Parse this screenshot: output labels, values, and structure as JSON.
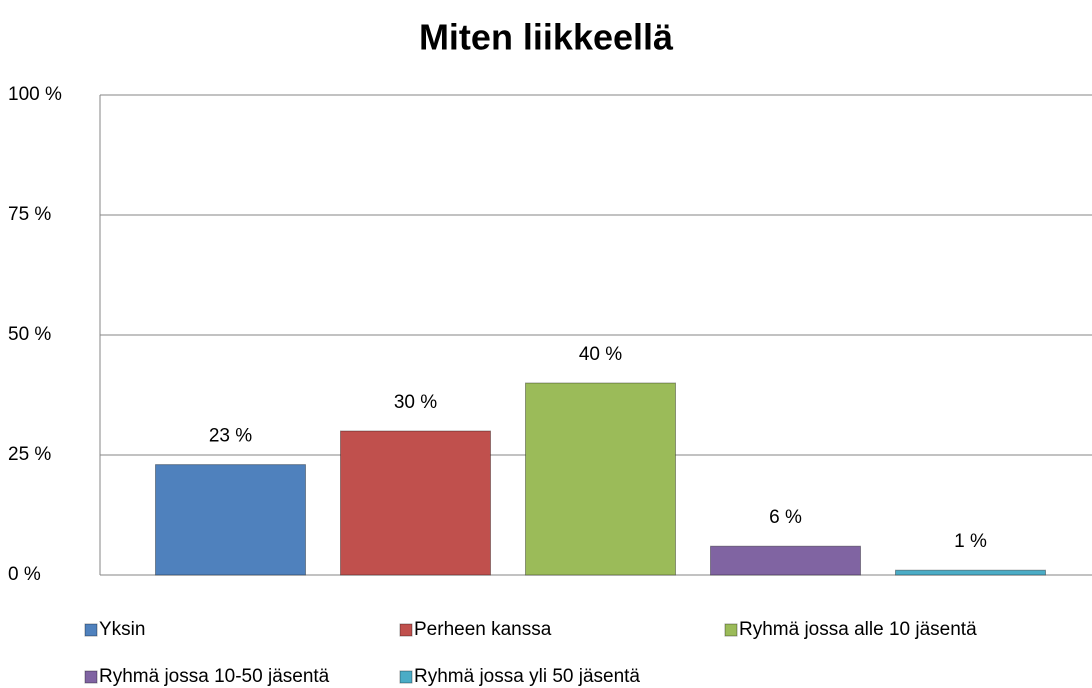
{
  "chart_data": {
    "type": "bar",
    "title": "Miten liikkeellä",
    "categories": [
      "Yksin",
      "Perheen kanssa",
      "Ryhmä jossa alle 10 jäsentä",
      "Ryhmä jossa 10-50 jäsentä",
      "Ryhmä jossa yli 50 jäsentä"
    ],
    "values": [
      23,
      30,
      40,
      6,
      1
    ],
    "value_labels": [
      "23 %",
      "30 %",
      "40 %",
      "6 %",
      "1 %"
    ],
    "colors": [
      "#4f81bd",
      "#c0504d",
      "#9bbb59",
      "#8064a2",
      "#4bacc6"
    ],
    "ylim": [
      0,
      100
    ],
    "yticks": [
      {
        "value": 0,
        "label": "0 %"
      },
      {
        "value": 25,
        "label": "25 %"
      },
      {
        "value": 50,
        "label": "50 %"
      },
      {
        "value": 75,
        "label": "75 %"
      },
      {
        "value": 100,
        "label": "100 %"
      }
    ],
    "grid": true,
    "legend": "bottom"
  }
}
